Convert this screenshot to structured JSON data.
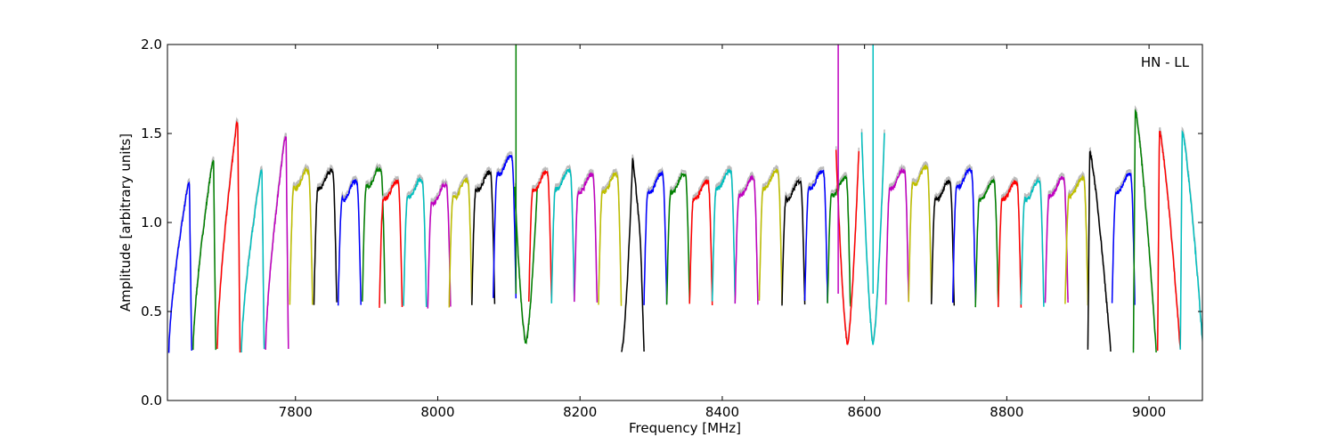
{
  "chart_data": {
    "type": "line",
    "title": "",
    "annotation": "HN - LL",
    "xlabel": "Frequency [MHz]",
    "ylabel": "Amplitude [arbitrary units]",
    "xlim": [
      7620,
      9075
    ],
    "ylim": [
      0.0,
      2.0
    ],
    "xticks": [
      7800,
      8000,
      8200,
      8400,
      8600,
      8800,
      9000
    ],
    "xtick_labels": [
      "7800",
      "8000",
      "8200",
      "8400",
      "8600",
      "8800",
      "9000"
    ],
    "yticks": [
      0.0,
      0.5,
      1.0,
      1.5,
      2.0
    ],
    "ytick_labels": [
      "0.0",
      "0.5",
      "1.0",
      "1.5",
      "2.0"
    ],
    "grid": false,
    "palette": [
      "#0000ff",
      "#008000",
      "#ff0000",
      "#00bfbf",
      "#bf00bf",
      "#bfbf00",
      "#000000"
    ],
    "shadow_color": "#bbbbbb",
    "channel_width_mhz": 32,
    "channels": [
      {
        "start": 7622,
        "level": 1.22,
        "shape": "ramp"
      },
      {
        "start": 7656,
        "level": 1.34,
        "shape": "ramp"
      },
      {
        "start": 7690,
        "level": 1.55,
        "shape": "ramp"
      },
      {
        "start": 7724,
        "level": 1.28,
        "shape": "ramp"
      },
      {
        "start": 7758,
        "level": 1.48,
        "shape": "ramp"
      },
      {
        "start": 7792,
        "level": 1.24,
        "shape": "flat"
      },
      {
        "start": 7826,
        "level": 1.24,
        "shape": "flat"
      },
      {
        "start": 7860,
        "level": 1.18,
        "shape": "flat"
      },
      {
        "start": 7894,
        "level": 1.25,
        "shape": "flat"
      },
      {
        "start": 7918,
        "level": 1.18,
        "shape": "flat"
      },
      {
        "start": 7952,
        "level": 1.19,
        "shape": "flat"
      },
      {
        "start": 7986,
        "level": 1.16,
        "shape": "flat"
      },
      {
        "start": 8016,
        "level": 1.19,
        "shape": "flat"
      },
      {
        "start": 8048,
        "level": 1.23,
        "shape": "flat"
      },
      {
        "start": 8078,
        "level": 1.32,
        "shape": "flat"
      },
      {
        "start": 8108,
        "level": 1.2,
        "shape": "notch"
      },
      {
        "start": 8128,
        "level": 1.23,
        "shape": "flat"
      },
      {
        "start": 8160,
        "level": 1.24,
        "shape": "flat"
      },
      {
        "start": 8192,
        "level": 1.22,
        "shape": "flat"
      },
      {
        "start": 8226,
        "level": 1.22,
        "shape": "flat"
      },
      {
        "start": 8258,
        "level": 1.36,
        "shape": "peak"
      },
      {
        "start": 8290,
        "level": 1.22,
        "shape": "flat"
      },
      {
        "start": 8322,
        "level": 1.22,
        "shape": "flat"
      },
      {
        "start": 8354,
        "level": 1.18,
        "shape": "flat"
      },
      {
        "start": 8386,
        "level": 1.24,
        "shape": "flat"
      },
      {
        "start": 8418,
        "level": 1.2,
        "shape": "flat"
      },
      {
        "start": 8452,
        "level": 1.24,
        "shape": "flat"
      },
      {
        "start": 8484,
        "level": 1.18,
        "shape": "flat"
      },
      {
        "start": 8516,
        "level": 1.24,
        "shape": "flat"
      },
      {
        "start": 8548,
        "level": 1.2,
        "shape": "flat"
      },
      {
        "start": 8560,
        "level": 1.4,
        "shape": "notch"
      },
      {
        "start": 8596,
        "level": 1.5,
        "shape": "notch"
      },
      {
        "start": 8630,
        "level": 1.24,
        "shape": "flat"
      },
      {
        "start": 8662,
        "level": 1.26,
        "shape": "flat"
      },
      {
        "start": 8694,
        "level": 1.18,
        "shape": "flat"
      },
      {
        "start": 8724,
        "level": 1.25,
        "shape": "flat"
      },
      {
        "start": 8756,
        "level": 1.18,
        "shape": "flat"
      },
      {
        "start": 8788,
        "level": 1.18,
        "shape": "flat"
      },
      {
        "start": 8820,
        "level": 1.18,
        "shape": "flat"
      },
      {
        "start": 8854,
        "level": 1.2,
        "shape": "flat"
      },
      {
        "start": 8882,
        "level": 1.2,
        "shape": "flat"
      },
      {
        "start": 8914,
        "level": 1.4,
        "shape": "decay"
      },
      {
        "start": 8948,
        "level": 1.22,
        "shape": "flat"
      },
      {
        "start": 8978,
        "level": 1.64,
        "shape": "decay"
      },
      {
        "start": 9012,
        "level": 1.52,
        "shape": "decay"
      },
      {
        "start": 9044,
        "level": 1.52,
        "shape": "decay"
      }
    ],
    "spikes": [
      {
        "x": 8110,
        "color": "#008000"
      },
      {
        "x": 8563,
        "color": "#bf00bf"
      },
      {
        "x": 8612,
        "color": "#00bfbf"
      }
    ]
  }
}
